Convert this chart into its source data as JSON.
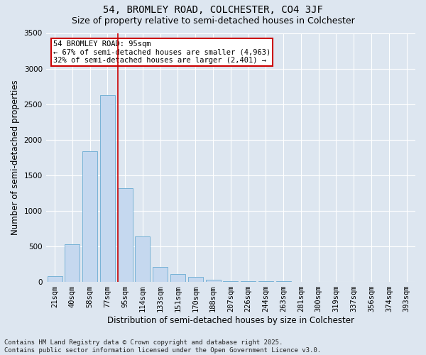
{
  "title_line1": "54, BROMLEY ROAD, COLCHESTER, CO4 3JF",
  "title_line2": "Size of property relative to semi-detached houses in Colchester",
  "xlabel": "Distribution of semi-detached houses by size in Colchester",
  "ylabel": "Number of semi-detached properties",
  "annotation_title": "54 BROMLEY ROAD: 95sqm",
  "annotation_line2": "← 67% of semi-detached houses are smaller (4,963)",
  "annotation_line3": "32% of semi-detached houses are larger (2,401) →",
  "footer_line1": "Contains HM Land Registry data © Crown copyright and database right 2025.",
  "footer_line2": "Contains public sector information licensed under the Open Government Licence v3.0.",
  "categories": [
    "21sqm",
    "40sqm",
    "58sqm",
    "77sqm",
    "95sqm",
    "114sqm",
    "133sqm",
    "151sqm",
    "170sqm",
    "188sqm",
    "207sqm",
    "226sqm",
    "244sqm",
    "263sqm",
    "281sqm",
    "300sqm",
    "319sqm",
    "337sqm",
    "356sqm",
    "374sqm",
    "393sqm"
  ],
  "values": [
    75,
    530,
    1840,
    2630,
    1320,
    640,
    210,
    105,
    65,
    30,
    10,
    5,
    2,
    1,
    0,
    0,
    0,
    0,
    0,
    0,
    0
  ],
  "bar_color": "#c5d8ef",
  "bar_edge_color": "#6aabd2",
  "red_line_index": 4,
  "ylim": [
    0,
    3500
  ],
  "yticks": [
    0,
    500,
    1000,
    1500,
    2000,
    2500,
    3000,
    3500
  ],
  "bg_color": "#dde6f0",
  "plot_bg_color": "#dde6f0",
  "annotation_box_color": "#ffffff",
  "annotation_box_edge": "#cc0000",
  "grid_color": "#ffffff",
  "title_fontsize": 10,
  "subtitle_fontsize": 9,
  "axis_label_fontsize": 8.5,
  "tick_fontsize": 7.5,
  "annotation_fontsize": 7.5,
  "footer_fontsize": 6.5
}
